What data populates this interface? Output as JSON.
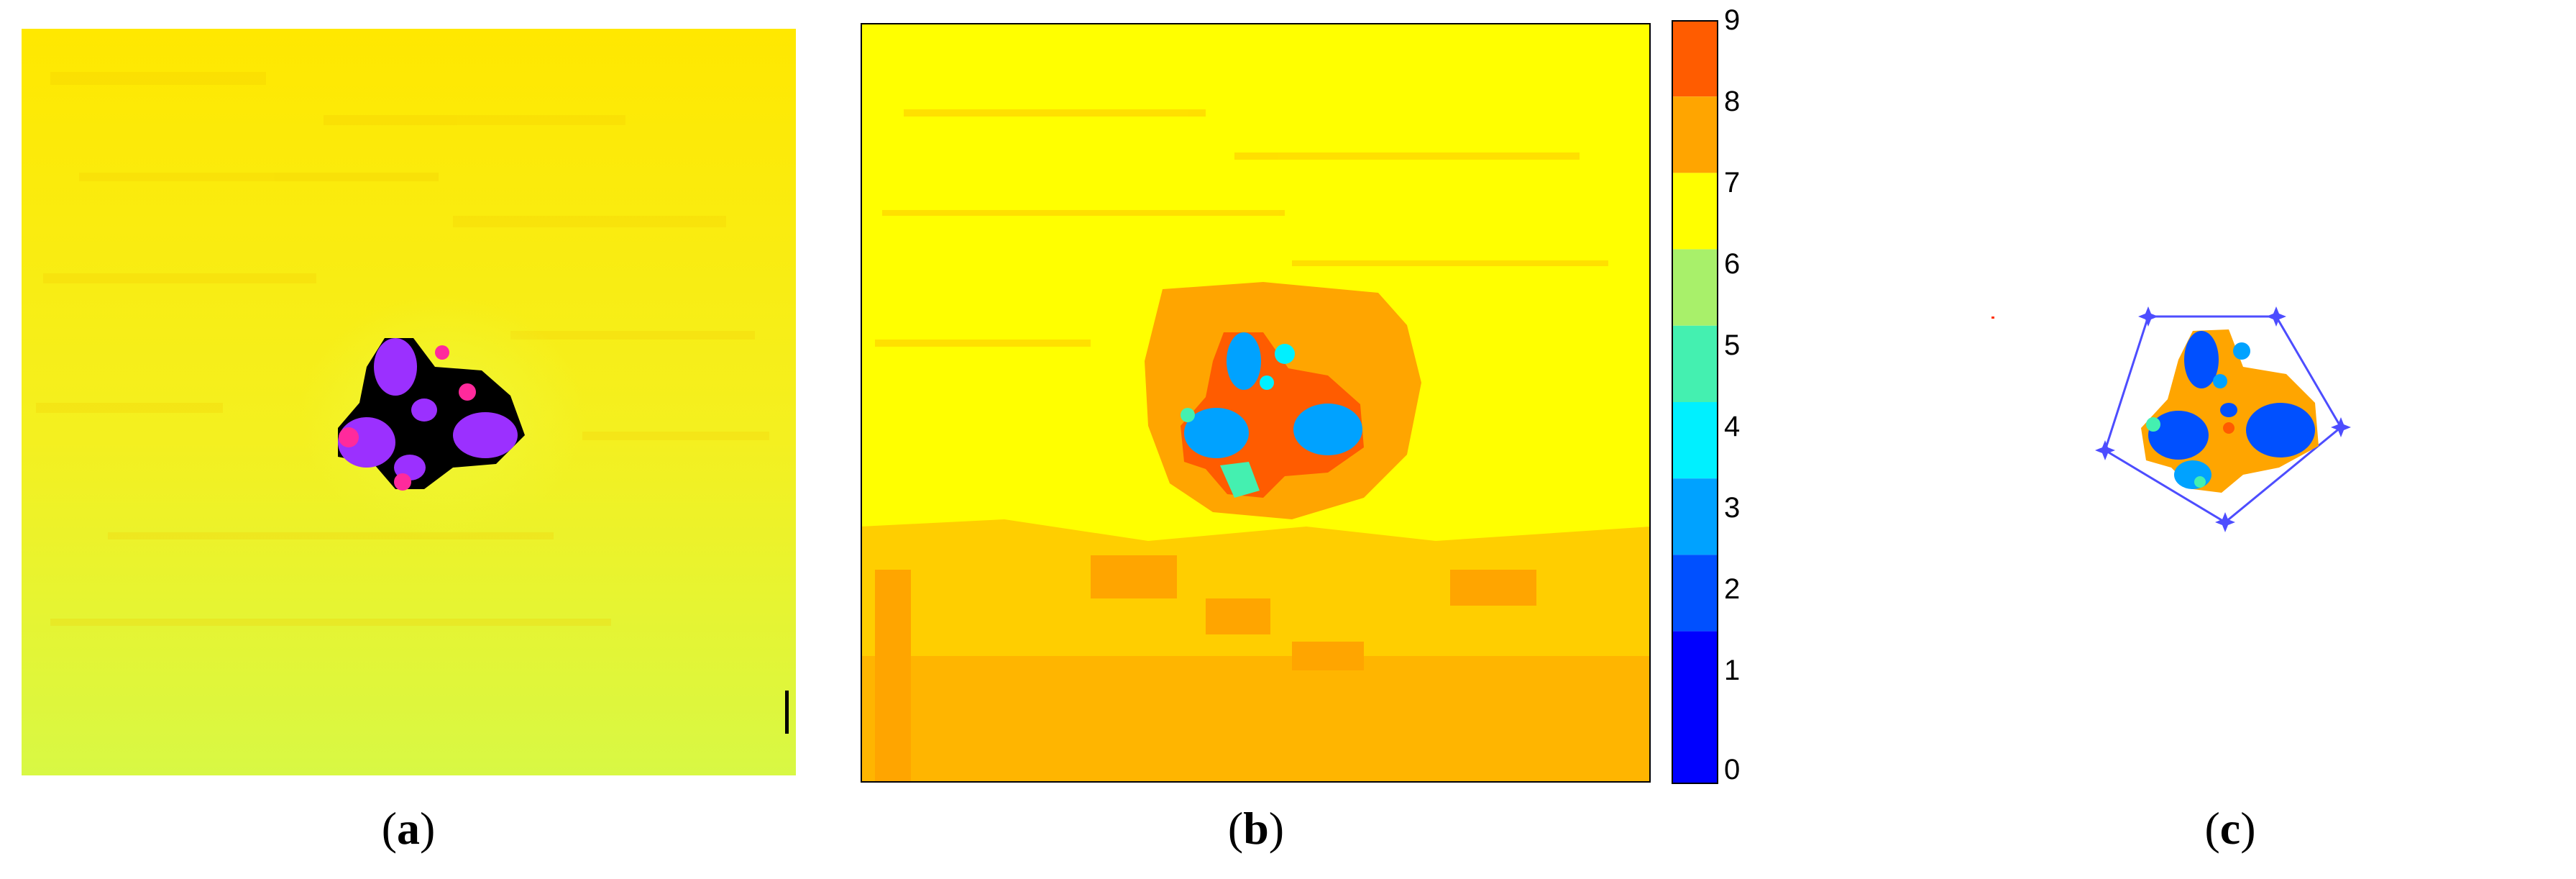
{
  "figure": {
    "panels": [
      {
        "id": "a",
        "caption_letter": "a",
        "caption_open": "(",
        "caption_close": ")"
      },
      {
        "id": "b",
        "caption_letter": "b",
        "caption_open": "(",
        "caption_close": ")"
      },
      {
        "id": "c",
        "caption_letter": "c",
        "caption_open": "(",
        "caption_close": ")"
      }
    ]
  },
  "colorbar": {
    "ticks": [
      "0",
      "1",
      "2",
      "3",
      "4",
      "5",
      "6",
      "7",
      "8",
      "9"
    ],
    "colors": [
      "#0000ff",
      "#0050ff",
      "#00a2ff",
      "#00f0ff",
      "#44f0b0",
      "#a8f06a",
      "#ffff00",
      "#ffa500",
      "#ff5c00",
      "#ff5c00"
    ]
  },
  "palette": {
    "yellow": "#ffff00",
    "lime_yellow": "#e6ff3a",
    "orange": "#ffa500",
    "red_orange": "#ff5c00",
    "sky_blue": "#00a2ff",
    "blue": "#0050ff",
    "cyan": "#00f0ff",
    "purple": "#9b30ff",
    "magenta": "#ff2a9c",
    "black": "#000000",
    "polygon_blue": "#4d4dff"
  }
}
